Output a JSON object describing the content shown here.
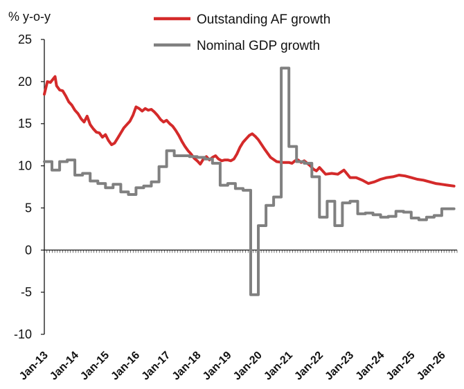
{
  "chart_data": {
    "type": "line",
    "ylabel": "% y-o-y",
    "ylim": [
      -10,
      25
    ],
    "yticks": [
      25,
      20,
      15,
      10,
      5,
      0,
      -5,
      -10
    ],
    "xlim": [
      2013.0,
      2026.5
    ],
    "xtick_labels": [
      "Jan-13",
      "Jan-14",
      "Jan-15",
      "Jan-16",
      "Jan-17",
      "Jan-18",
      "Jan-19",
      "Jan-20",
      "Jan-21",
      "Jan-22",
      "Jan-23",
      "Jan-24",
      "Jan-25",
      "Jan-26"
    ],
    "legend_position": "top",
    "series": [
      {
        "name": "Outstanding AF growth",
        "color": "#d42a2a",
        "x": [
          2013.0,
          2013.1,
          2013.2,
          2013.35,
          2013.4,
          2013.5,
          2013.6,
          2013.7,
          2013.8,
          2013.9,
          2014.0,
          2014.1,
          2014.2,
          2014.3,
          2014.4,
          2014.5,
          2014.6,
          2014.7,
          2014.8,
          2014.9,
          2015.0,
          2015.1,
          2015.2,
          2015.3,
          2015.4,
          2015.5,
          2015.6,
          2015.7,
          2015.8,
          2015.9,
          2016.0,
          2016.1,
          2016.2,
          2016.3,
          2016.4,
          2016.5,
          2016.6,
          2016.7,
          2016.8,
          2016.9,
          2017.0,
          2017.1,
          2017.2,
          2017.3,
          2017.4,
          2017.5,
          2017.6,
          2017.7,
          2017.8,
          2017.9,
          2018.0,
          2018.1,
          2018.2,
          2018.3,
          2018.4,
          2018.5,
          2018.6,
          2018.7,
          2018.8,
          2018.9,
          2019.0,
          2019.1,
          2019.2,
          2019.3,
          2019.4,
          2019.5,
          2019.6,
          2019.7,
          2019.8,
          2019.9,
          2020.0,
          2020.2,
          2020.4,
          2020.6,
          2020.8,
          2021.0,
          2021.1,
          2021.2,
          2021.3,
          2021.4,
          2021.5,
          2021.6,
          2021.7,
          2021.8,
          2021.9,
          2022.0,
          2022.2,
          2022.4,
          2022.6,
          2022.8,
          2023.0,
          2023.2,
          2023.4,
          2023.6,
          2023.8,
          2024.0,
          2024.2,
          2024.4,
          2024.6,
          2024.8,
          2025.0,
          2025.2,
          2025.4,
          2025.6,
          2025.8,
          2026.0,
          2026.2,
          2026.4
        ],
        "values": [
          18.5,
          20.0,
          19.9,
          20.6,
          19.5,
          19.0,
          18.9,
          18.3,
          17.6,
          17.2,
          16.6,
          16.2,
          15.6,
          15.2,
          15.9,
          14.9,
          14.4,
          14.0,
          13.9,
          13.4,
          13.7,
          13.0,
          12.5,
          12.7,
          13.3,
          13.9,
          14.5,
          14.9,
          15.3,
          16.0,
          17.0,
          16.8,
          16.5,
          16.8,
          16.6,
          16.7,
          16.4,
          16.0,
          15.5,
          15.2,
          15.4,
          15.0,
          14.7,
          14.2,
          13.6,
          12.9,
          12.3,
          11.8,
          11.4,
          10.9,
          10.6,
          10.2,
          10.8,
          11.1,
          10.7,
          11.0,
          11.2,
          10.8,
          10.6,
          10.7,
          10.7,
          10.6,
          10.8,
          11.4,
          12.2,
          12.8,
          13.2,
          13.6,
          13.8,
          13.5,
          13.1,
          12.0,
          11.0,
          10.5,
          10.4,
          10.4,
          10.3,
          10.6,
          10.7,
          10.4,
          10.6,
          10.3,
          10.0,
          9.6,
          9.4,
          9.8,
          9.0,
          9.1,
          9.0,
          9.5,
          8.6,
          8.6,
          8.3,
          7.9,
          8.1,
          8.4,
          8.6,
          8.7,
          8.9,
          8.8,
          8.6,
          8.4,
          8.3,
          8.1,
          7.9,
          7.8,
          7.7,
          7.6
        ]
      },
      {
        "name": "Nominal GDP growth",
        "color": "#808080",
        "x": [
          2013.0,
          2013.25,
          2013.25,
          2013.5,
          2013.5,
          2013.75,
          2013.75,
          2014.0,
          2014.0,
          2014.25,
          2014.25,
          2014.5,
          2014.5,
          2014.75,
          2014.75,
          2015.0,
          2015.0,
          2015.25,
          2015.25,
          2015.5,
          2015.5,
          2015.75,
          2015.75,
          2016.0,
          2016.0,
          2016.25,
          2016.25,
          2016.5,
          2016.5,
          2016.75,
          2016.75,
          2017.0,
          2017.0,
          2017.25,
          2017.25,
          2017.5,
          2017.5,
          2017.75,
          2017.75,
          2018.0,
          2018.0,
          2018.25,
          2018.25,
          2018.5,
          2018.5,
          2018.75,
          2018.75,
          2019.0,
          2019.0,
          2019.25,
          2019.25,
          2019.5,
          2019.5,
          2019.75,
          2019.75,
          2020.0,
          2020.0,
          2020.25,
          2020.25,
          2020.5,
          2020.5,
          2020.75,
          2020.75,
          2021.0,
          2021.0,
          2021.25,
          2021.25,
          2021.5,
          2021.5,
          2021.75,
          2021.75,
          2022.0,
          2022.0,
          2022.25,
          2022.25,
          2022.5,
          2022.5,
          2022.75,
          2022.75,
          2023.0,
          2023.0,
          2023.25,
          2023.25,
          2023.5,
          2023.5,
          2023.75,
          2023.75,
          2024.0,
          2024.0,
          2024.25,
          2024.25,
          2024.5,
          2024.5,
          2024.75,
          2024.75,
          2025.0,
          2025.0,
          2025.25,
          2025.25,
          2025.5,
          2025.5,
          2025.75,
          2025.75,
          2026.0,
          2026.0,
          2026.25,
          2026.4
        ],
        "values": [
          10.5,
          10.5,
          9.5,
          9.5,
          10.5,
          10.5,
          10.7,
          10.7,
          8.9,
          8.9,
          9.1,
          9.1,
          8.2,
          8.2,
          7.9,
          7.9,
          7.4,
          7.4,
          7.8,
          7.8,
          6.9,
          6.9,
          6.6,
          6.6,
          7.4,
          7.4,
          7.6,
          7.6,
          8.1,
          8.1,
          9.9,
          9.9,
          11.8,
          11.8,
          11.2,
          11.2,
          11.2,
          11.2,
          11.1,
          11.1,
          11.0,
          11.0,
          10.8,
          10.8,
          10.3,
          10.3,
          7.7,
          7.7,
          7.9,
          7.9,
          7.3,
          7.3,
          7.1,
          7.1,
          -5.3,
          -5.3,
          2.9,
          2.9,
          5.3,
          5.3,
          6.3,
          6.3,
          21.6,
          21.6,
          12.3,
          12.3,
          10.5,
          10.5,
          10.3,
          10.3,
          8.7,
          8.7,
          3.9,
          3.9,
          5.8,
          5.8,
          2.9,
          2.9,
          5.6,
          5.6,
          5.8,
          5.8,
          4.3,
          4.3,
          4.4,
          4.4,
          4.2,
          4.2,
          3.9,
          3.9,
          4.0,
          4.0,
          4.6,
          4.6,
          4.5,
          4.5,
          3.8,
          3.8,
          3.6,
          3.6,
          3.9,
          3.9,
          4.1,
          4.1,
          4.9,
          4.9,
          4.9
        ]
      }
    ]
  }
}
